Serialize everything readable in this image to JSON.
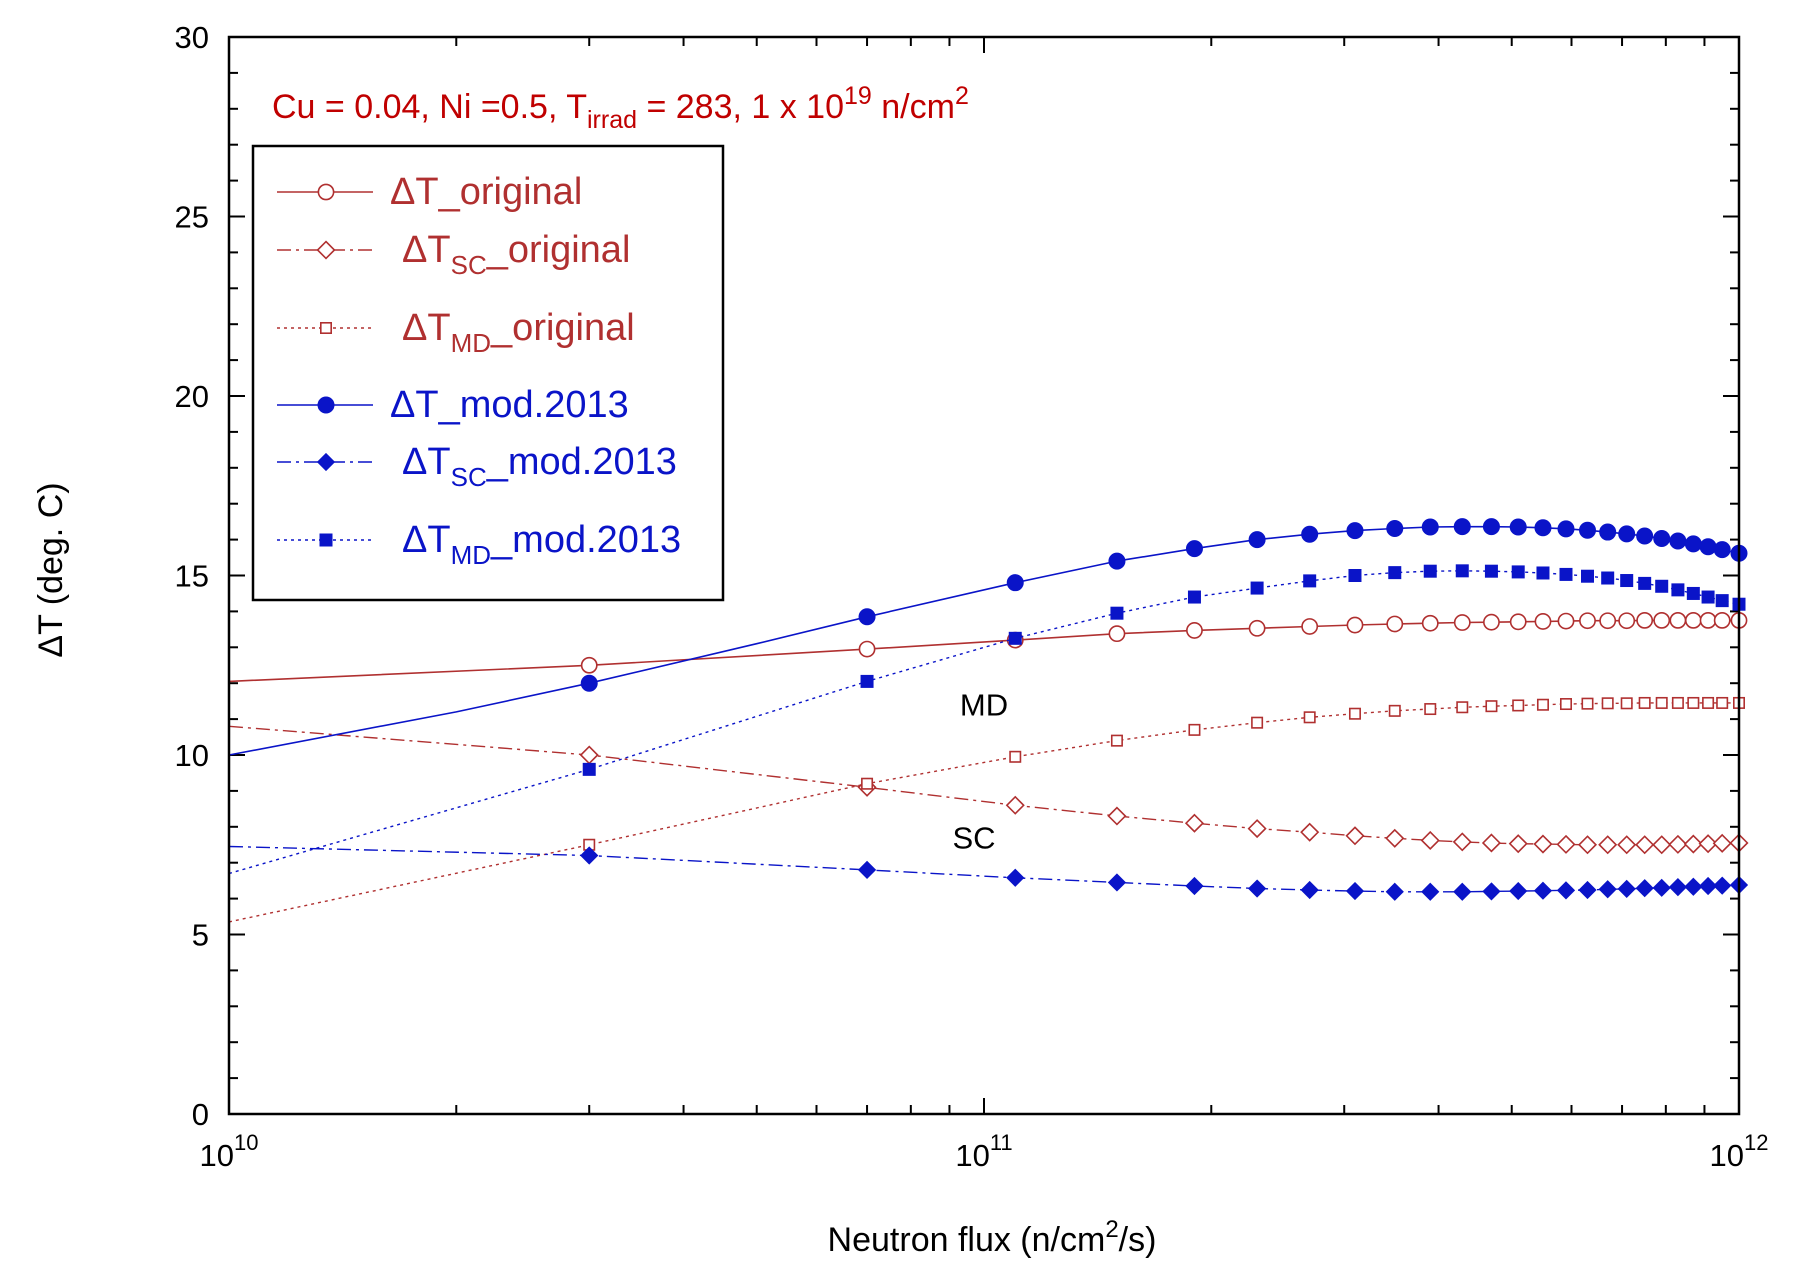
{
  "colors": {
    "original": "#b03030",
    "mod2013": "#0a14c8",
    "title": "#c00000",
    "axis": "#000000"
  },
  "chart_data": {
    "type": "line",
    "title": "Cu = 0.04, Ni =0.5, Tirrad = 283, 1 x 1019 n/cm2",
    "title_parts": {
      "pre": "Cu = 0.04, Ni =0.5, T",
      "sub": "irrad",
      "mid": " = 283, 1 x 10",
      "sup": "19",
      "mid2": " n/cm",
      "sup2": "2"
    },
    "xlabel_parts": {
      "pre": "Neutron flux (n/cm",
      "sup": "2",
      "post": "/s)"
    },
    "ylabel": "ΔT (deg. C)",
    "xscale": "log",
    "xlim": [
      10000000000.0,
      1000000000000.0
    ],
    "ylim": [
      0,
      30
    ],
    "x_ticks": [
      {
        "value": 10000000000.0,
        "base": "10",
        "exp": "10"
      },
      {
        "value": 100000000000.0,
        "base": "10",
        "exp": "11"
      },
      {
        "value": 1000000000000.0,
        "base": "10",
        "exp": "12"
      }
    ],
    "y_ticks": [
      "0",
      "5",
      "10",
      "15",
      "20",
      "25",
      "30"
    ],
    "annotations": [
      {
        "text": "MD",
        "x": 100000000000.0,
        "y": 11.1
      },
      {
        "text": "SC",
        "x": 97000000000.0,
        "y": 7.4
      }
    ],
    "series": [
      {
        "name": "ΔT_original",
        "legend": {
          "pre": "ΔT",
          "sub": "",
          "post": "_original"
        },
        "group": "original",
        "dash": "solid",
        "marker": "circle-open",
        "curve_x": [
          10000000000.0,
          30000000000.0,
          70000000000.0,
          110000000000.0,
          150000000000.0,
          190000000000.0,
          230000000000.0,
          270000000000.0,
          310000000000.0,
          350000000000.0,
          390000000000.0,
          430000000000.0,
          470000000000.0,
          510000000000.0,
          550000000000.0,
          590000000000.0,
          630000000000.0,
          670000000000.0,
          710000000000.0,
          750000000000.0,
          790000000000.0,
          830000000000.0,
          870000000000.0,
          910000000000.0,
          950000000000.0,
          1000000000000.0
        ],
        "curve_y": [
          12.05,
          12.5,
          12.95,
          13.2,
          13.38,
          13.47,
          13.53,
          13.58,
          13.62,
          13.65,
          13.67,
          13.69,
          13.7,
          13.71,
          13.72,
          13.73,
          13.74,
          13.74,
          13.74,
          13.75,
          13.75,
          13.75,
          13.75,
          13.75,
          13.75,
          13.75
        ],
        "marker_x": [
          30000000000.0,
          70000000000.0,
          110000000000.0,
          150000000000.0,
          190000000000.0,
          230000000000.0,
          270000000000.0,
          310000000000.0,
          350000000000.0,
          390000000000.0,
          430000000000.0,
          470000000000.0,
          510000000000.0,
          550000000000.0,
          590000000000.0,
          630000000000.0,
          670000000000.0,
          710000000000.0,
          750000000000.0,
          790000000000.0,
          830000000000.0,
          870000000000.0,
          910000000000.0,
          950000000000.0,
          1000000000000.0
        ],
        "marker_y": [
          12.5,
          12.95,
          13.2,
          13.38,
          13.47,
          13.53,
          13.58,
          13.62,
          13.65,
          13.67,
          13.69,
          13.7,
          13.71,
          13.72,
          13.73,
          13.74,
          13.74,
          13.74,
          13.75,
          13.75,
          13.75,
          13.75,
          13.75,
          13.75,
          13.75
        ]
      },
      {
        "name": "ΔTSC_original",
        "legend": {
          "pre": "ΔT",
          "sub": "SC",
          "post": "_original"
        },
        "group": "original",
        "dash": "dashdot",
        "marker": "diamond-open",
        "curve_x": [
          10000000000.0,
          30000000000.0,
          70000000000.0,
          110000000000.0,
          150000000000.0,
          190000000000.0,
          230000000000.0,
          270000000000.0,
          310000000000.0,
          350000000000.0,
          390000000000.0,
          430000000000.0,
          470000000000.0,
          510000000000.0,
          550000000000.0,
          590000000000.0,
          630000000000.0,
          670000000000.0,
          710000000000.0,
          750000000000.0,
          790000000000.0,
          830000000000.0,
          870000000000.0,
          910000000000.0,
          950000000000.0,
          1000000000000.0
        ],
        "curve_y": [
          10.8,
          10.0,
          9.1,
          8.6,
          8.3,
          8.1,
          7.95,
          7.85,
          7.75,
          7.68,
          7.62,
          7.58,
          7.55,
          7.53,
          7.52,
          7.51,
          7.5,
          7.5,
          7.5,
          7.5,
          7.5,
          7.51,
          7.52,
          7.53,
          7.54,
          7.55
        ],
        "marker_x": [
          30000000000.0,
          70000000000.0,
          110000000000.0,
          150000000000.0,
          190000000000.0,
          230000000000.0,
          270000000000.0,
          310000000000.0,
          350000000000.0,
          390000000000.0,
          430000000000.0,
          470000000000.0,
          510000000000.0,
          550000000000.0,
          590000000000.0,
          630000000000.0,
          670000000000.0,
          710000000000.0,
          750000000000.0,
          790000000000.0,
          830000000000.0,
          870000000000.0,
          910000000000.0,
          950000000000.0,
          1000000000000.0
        ],
        "marker_y": [
          10.0,
          9.1,
          8.6,
          8.3,
          8.1,
          7.95,
          7.85,
          7.75,
          7.68,
          7.62,
          7.58,
          7.55,
          7.53,
          7.52,
          7.51,
          7.5,
          7.5,
          7.5,
          7.5,
          7.5,
          7.51,
          7.52,
          7.53,
          7.54,
          7.55
        ]
      },
      {
        "name": "ΔTMD_original",
        "legend": {
          "pre": "ΔT",
          "sub": "MD",
          "post": "_original"
        },
        "group": "original",
        "dash": "dotted",
        "marker": "square-open",
        "curve_x": [
          10000000000.0,
          30000000000.0,
          70000000000.0,
          110000000000.0,
          150000000000.0,
          190000000000.0,
          230000000000.0,
          270000000000.0,
          310000000000.0,
          350000000000.0,
          390000000000.0,
          430000000000.0,
          470000000000.0,
          510000000000.0,
          550000000000.0,
          590000000000.0,
          630000000000.0,
          670000000000.0,
          710000000000.0,
          750000000000.0,
          790000000000.0,
          830000000000.0,
          870000000000.0,
          910000000000.0,
          950000000000.0,
          1000000000000.0
        ],
        "curve_y": [
          5.35,
          7.5,
          9.2,
          9.95,
          10.4,
          10.7,
          10.9,
          11.05,
          11.15,
          11.23,
          11.28,
          11.33,
          11.36,
          11.38,
          11.4,
          11.42,
          11.43,
          11.44,
          11.44,
          11.45,
          11.45,
          11.45,
          11.45,
          11.45,
          11.45,
          11.45
        ],
        "marker_x": [
          30000000000.0,
          70000000000.0,
          110000000000.0,
          150000000000.0,
          190000000000.0,
          230000000000.0,
          270000000000.0,
          310000000000.0,
          350000000000.0,
          390000000000.0,
          430000000000.0,
          470000000000.0,
          510000000000.0,
          550000000000.0,
          590000000000.0,
          630000000000.0,
          670000000000.0,
          710000000000.0,
          750000000000.0,
          790000000000.0,
          830000000000.0,
          870000000000.0,
          910000000000.0,
          950000000000.0,
          1000000000000.0
        ],
        "marker_y": [
          7.5,
          9.2,
          9.95,
          10.4,
          10.7,
          10.9,
          11.05,
          11.15,
          11.23,
          11.28,
          11.33,
          11.36,
          11.38,
          11.4,
          11.42,
          11.43,
          11.44,
          11.44,
          11.45,
          11.45,
          11.45,
          11.45,
          11.45,
          11.45,
          11.45
        ]
      },
      {
        "name": "ΔT_mod.2013",
        "legend": {
          "pre": "ΔT",
          "sub": "",
          "post": "_mod.2013"
        },
        "group": "mod2013",
        "dash": "solid",
        "marker": "circle-filled",
        "curve_x": [
          10000000000.0,
          20000000000.0,
          30000000000.0,
          50000000000.0,
          70000000000.0,
          110000000000.0,
          150000000000.0,
          190000000000.0,
          230000000000.0,
          270000000000.0,
          310000000000.0,
          350000000000.0,
          390000000000.0,
          430000000000.0,
          470000000000.0,
          510000000000.0,
          550000000000.0,
          590000000000.0,
          630000000000.0,
          670000000000.0,
          710000000000.0,
          750000000000.0,
          790000000000.0,
          830000000000.0,
          870000000000.0,
          910000000000.0,
          950000000000.0,
          1000000000000.0
        ],
        "curve_y": [
          10.0,
          11.2,
          12.0,
          13.1,
          13.85,
          14.8,
          15.4,
          15.75,
          16.0,
          16.15,
          16.25,
          16.31,
          16.35,
          16.36,
          16.36,
          16.35,
          16.33,
          16.3,
          16.26,
          16.21,
          16.16,
          16.1,
          16.03,
          15.96,
          15.88,
          15.8,
          15.72,
          15.62
        ],
        "marker_x": [
          30000000000.0,
          70000000000.0,
          110000000000.0,
          150000000000.0,
          190000000000.0,
          230000000000.0,
          270000000000.0,
          310000000000.0,
          350000000000.0,
          390000000000.0,
          430000000000.0,
          470000000000.0,
          510000000000.0,
          550000000000.0,
          590000000000.0,
          630000000000.0,
          670000000000.0,
          710000000000.0,
          750000000000.0,
          790000000000.0,
          830000000000.0,
          870000000000.0,
          910000000000.0,
          950000000000.0,
          1000000000000.0
        ],
        "marker_y": [
          12.0,
          13.85,
          14.8,
          15.4,
          15.75,
          16.0,
          16.15,
          16.25,
          16.31,
          16.35,
          16.36,
          16.36,
          16.35,
          16.33,
          16.3,
          16.26,
          16.21,
          16.16,
          16.1,
          16.03,
          15.96,
          15.88,
          15.8,
          15.72,
          15.62
        ]
      },
      {
        "name": "ΔTSC_mod.2013",
        "legend": {
          "pre": "ΔT",
          "sub": "SC",
          "post": "_mod.2013"
        },
        "group": "mod2013",
        "dash": "dashdot",
        "marker": "diamond-filled",
        "curve_x": [
          10000000000.0,
          30000000000.0,
          70000000000.0,
          110000000000.0,
          150000000000.0,
          190000000000.0,
          230000000000.0,
          270000000000.0,
          310000000000.0,
          350000000000.0,
          390000000000.0,
          430000000000.0,
          470000000000.0,
          510000000000.0,
          550000000000.0,
          590000000000.0,
          630000000000.0,
          670000000000.0,
          710000000000.0,
          750000000000.0,
          790000000000.0,
          830000000000.0,
          870000000000.0,
          910000000000.0,
          950000000000.0,
          1000000000000.0
        ],
        "curve_y": [
          7.45,
          7.2,
          6.8,
          6.58,
          6.45,
          6.35,
          6.28,
          6.24,
          6.21,
          6.19,
          6.19,
          6.19,
          6.2,
          6.21,
          6.22,
          6.23,
          6.24,
          6.26,
          6.27,
          6.29,
          6.3,
          6.32,
          6.33,
          6.35,
          6.36,
          6.38
        ],
        "marker_x": [
          30000000000.0,
          70000000000.0,
          110000000000.0,
          150000000000.0,
          190000000000.0,
          230000000000.0,
          270000000000.0,
          310000000000.0,
          350000000000.0,
          390000000000.0,
          430000000000.0,
          470000000000.0,
          510000000000.0,
          550000000000.0,
          590000000000.0,
          630000000000.0,
          670000000000.0,
          710000000000.0,
          750000000000.0,
          790000000000.0,
          830000000000.0,
          870000000000.0,
          910000000000.0,
          950000000000.0,
          1000000000000.0
        ],
        "marker_y": [
          7.2,
          6.8,
          6.58,
          6.45,
          6.35,
          6.28,
          6.24,
          6.21,
          6.19,
          6.19,
          6.19,
          6.2,
          6.21,
          6.22,
          6.23,
          6.24,
          6.26,
          6.27,
          6.29,
          6.3,
          6.32,
          6.33,
          6.35,
          6.36,
          6.38
        ]
      },
      {
        "name": "ΔTMD_mod.2013",
        "legend": {
          "pre": "ΔT",
          "sub": "MD",
          "post": "_mod.2013"
        },
        "group": "mod2013",
        "dash": "dotted",
        "marker": "square-filled",
        "curve_x": [
          10000000000.0,
          30000000000.0,
          70000000000.0,
          110000000000.0,
          150000000000.0,
          190000000000.0,
          230000000000.0,
          270000000000.0,
          310000000000.0,
          350000000000.0,
          390000000000.0,
          430000000000.0,
          470000000000.0,
          510000000000.0,
          550000000000.0,
          590000000000.0,
          630000000000.0,
          670000000000.0,
          710000000000.0,
          750000000000.0,
          790000000000.0,
          830000000000.0,
          870000000000.0,
          910000000000.0,
          950000000000.0,
          1000000000000.0
        ],
        "curve_y": [
          6.7,
          9.6,
          12.05,
          13.25,
          13.95,
          14.4,
          14.65,
          14.85,
          15.0,
          15.08,
          15.12,
          15.13,
          15.12,
          15.1,
          15.07,
          15.03,
          14.98,
          14.93,
          14.86,
          14.78,
          14.7,
          14.6,
          14.5,
          14.4,
          14.3,
          14.2
        ],
        "marker_x": [
          30000000000.0,
          70000000000.0,
          110000000000.0,
          150000000000.0,
          190000000000.0,
          230000000000.0,
          270000000000.0,
          310000000000.0,
          350000000000.0,
          390000000000.0,
          430000000000.0,
          470000000000.0,
          510000000000.0,
          550000000000.0,
          590000000000.0,
          630000000000.0,
          670000000000.0,
          710000000000.0,
          750000000000.0,
          790000000000.0,
          830000000000.0,
          870000000000.0,
          910000000000.0,
          950000000000.0,
          1000000000000.0
        ],
        "marker_y": [
          9.6,
          12.05,
          13.25,
          13.95,
          14.4,
          14.65,
          14.85,
          15.0,
          15.08,
          15.12,
          15.13,
          15.12,
          15.1,
          15.07,
          15.03,
          14.98,
          14.93,
          14.86,
          14.78,
          14.7,
          14.6,
          14.5,
          14.4,
          14.3,
          14.2
        ]
      }
    ]
  }
}
